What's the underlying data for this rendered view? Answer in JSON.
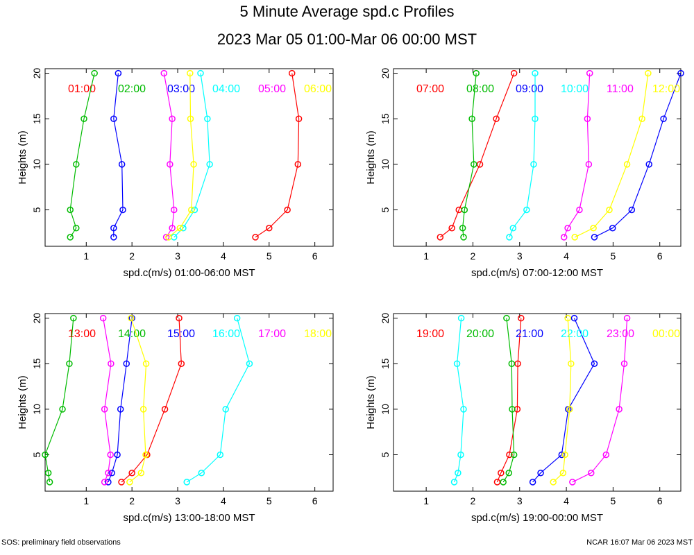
{
  "title": "5 Minute Average spd.c Profiles",
  "subtitle": "2023 Mar 05 01:00-Mar 06 00:00 MST",
  "footer_left": "SOS: preliminary field observations",
  "footer_right": "NCAR 16:07 Mar 06 2023 MST",
  "colors": [
    "#ff0000",
    "#00bb00",
    "#0000ff",
    "#00ffff",
    "#ff00ff",
    "#ffff00"
  ],
  "chart_data": [
    {
      "type": "line",
      "xlabel": "spd.c(m/s) 01:00-06:00 MST",
      "ylabel": "Heights (m)",
      "xlim": [
        0.1,
        6.4
      ],
      "ylim": [
        1,
        20.5
      ],
      "xticks": [
        1,
        2,
        3,
        4,
        5,
        6
      ],
      "yticks": [
        5,
        10,
        15,
        20
      ],
      "heights": [
        2,
        3,
        5,
        10,
        15,
        20
      ],
      "series": [
        {
          "name": "01:00",
          "values": [
            4.7,
            5.0,
            5.4,
            5.63,
            5.65,
            5.5
          ]
        },
        {
          "name": "02:00",
          "values": [
            0.65,
            0.78,
            0.65,
            0.78,
            0.95,
            1.18
          ]
        },
        {
          "name": "03:00",
          "values": [
            1.6,
            1.6,
            1.8,
            1.78,
            1.6,
            1.7
          ]
        },
        {
          "name": "04:00",
          "values": [
            2.92,
            3.12,
            3.37,
            3.7,
            3.65,
            3.5
          ]
        },
        {
          "name": "05:00",
          "values": [
            2.75,
            2.88,
            2.92,
            2.83,
            2.88,
            2.7
          ]
        },
        {
          "name": "06:00",
          "values": [
            2.8,
            3.05,
            3.3,
            3.35,
            3.28,
            3.27
          ]
        }
      ]
    },
    {
      "type": "line",
      "xlabel": "spd.c(m/s) 07:00-12:00 MST",
      "ylabel": "Heights (m)",
      "xlim": [
        0.3,
        6.45
      ],
      "ylim": [
        1,
        20.5
      ],
      "xticks": [
        1,
        2,
        3,
        4,
        5,
        6
      ],
      "yticks": [
        5,
        10,
        15,
        20
      ],
      "heights": [
        2,
        3,
        5,
        10,
        15,
        20
      ],
      "series": [
        {
          "name": "07:00",
          "values": [
            1.3,
            1.55,
            1.7,
            2.15,
            2.5,
            2.88
          ]
        },
        {
          "name": "08:00",
          "values": [
            1.8,
            1.78,
            1.82,
            2.02,
            1.98,
            2.07
          ]
        },
        {
          "name": "09:00",
          "values": [
            4.6,
            4.99,
            5.4,
            5.77,
            6.08,
            6.45
          ]
        },
        {
          "name": "10:00",
          "values": [
            2.78,
            2.86,
            3.15,
            3.3,
            3.33,
            3.33
          ]
        },
        {
          "name": "11:00",
          "values": [
            3.95,
            4.03,
            4.28,
            4.48,
            4.45,
            4.5
          ]
        },
        {
          "name": "12:00",
          "values": [
            4.18,
            4.58,
            4.92,
            5.3,
            5.62,
            5.75
          ]
        }
      ]
    },
    {
      "type": "line",
      "xlabel": "spd.c(m/s) 13:00-18:00 MST",
      "ylabel": "Heights (m)",
      "xlim": [
        0.1,
        6.4
      ],
      "ylim": [
        1,
        20.5
      ],
      "xticks": [
        1,
        2,
        3,
        4,
        5,
        6
      ],
      "yticks": [
        5,
        10,
        15,
        20
      ],
      "heights": [
        2,
        3,
        5,
        10,
        15,
        20
      ],
      "series": [
        {
          "name": "13:00",
          "values": [
            1.77,
            2.0,
            2.33,
            2.72,
            3.08,
            3.03
          ]
        },
        {
          "name": "14:00",
          "values": [
            0.2,
            0.17,
            0.1,
            0.48,
            0.63,
            0.72
          ]
        },
        {
          "name": "15:00",
          "values": [
            1.48,
            1.56,
            1.68,
            1.75,
            1.88,
            2.0
          ]
        },
        {
          "name": "16:00",
          "values": [
            3.2,
            3.52,
            3.93,
            4.05,
            4.57,
            4.3
          ]
        },
        {
          "name": "17:00",
          "values": [
            1.4,
            1.48,
            1.53,
            1.4,
            1.54,
            1.37
          ]
        },
        {
          "name": "18:00",
          "values": [
            1.95,
            2.2,
            2.3,
            2.25,
            2.31,
            1.98
          ]
        }
      ]
    },
    {
      "type": "line",
      "xlabel": "spd.c(m/s) 19:00-00:00 MST",
      "ylabel": "Heights (m)",
      "xlim": [
        0.3,
        6.45
      ],
      "ylim": [
        1,
        20.5
      ],
      "xticks": [
        1,
        2,
        3,
        4,
        5,
        6
      ],
      "yticks": [
        5,
        10,
        15,
        20
      ],
      "heights": [
        2,
        3,
        5,
        10,
        15,
        20
      ],
      "series": [
        {
          "name": "19:00",
          "values": [
            2.52,
            2.6,
            2.78,
            2.95,
            2.96,
            3.03
          ]
        },
        {
          "name": "20:00",
          "values": [
            2.65,
            2.77,
            2.88,
            2.84,
            2.83,
            2.72
          ]
        },
        {
          "name": "21:00",
          "values": [
            3.28,
            3.45,
            3.9,
            4.04,
            4.6,
            4.17
          ]
        },
        {
          "name": "22:00",
          "values": [
            1.6,
            1.68,
            1.74,
            1.8,
            1.66,
            1.75
          ]
        },
        {
          "name": "23:00",
          "values": [
            4.13,
            4.53,
            4.85,
            5.13,
            5.24,
            5.3
          ]
        },
        {
          "name": "00:00",
          "values": [
            3.72,
            3.93,
            3.97,
            4.07,
            4.1,
            4.03
          ]
        }
      ]
    }
  ]
}
